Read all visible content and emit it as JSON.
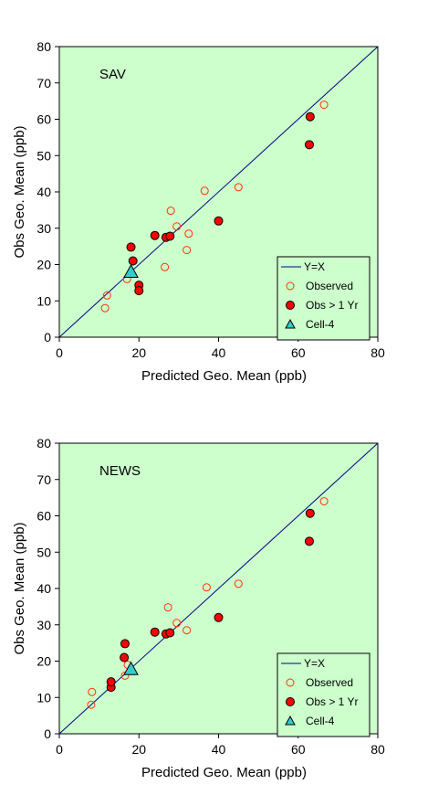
{
  "colors": {
    "plot_bg": "#ccffcc",
    "line": "#000080",
    "marker_edge_observed": "#ff3300",
    "marker_fill_obs": "#ff0000",
    "marker_fill_cell": "#33cccc",
    "axis": "#000000"
  },
  "chart_data": [
    {
      "type": "scatter",
      "title": "SAV",
      "xlabel": "Predicted Geo. Mean  (ppb)",
      "ylabel": "Obs Geo. Mean  (ppb)",
      "xlim": [
        0,
        80
      ],
      "ylim": [
        0,
        80
      ],
      "xticks": [
        "0",
        "20",
        "40",
        "60",
        "80"
      ],
      "yticks": [
        "0",
        "10",
        "20",
        "30",
        "40",
        "50",
        "60",
        "70",
        "80"
      ],
      "grid": false,
      "legend_position": "bottom-right",
      "series": [
        {
          "name": "Y=X",
          "kind": "line",
          "x": [
            0,
            80
          ],
          "y": [
            0,
            80
          ]
        },
        {
          "name": "Observed",
          "kind": "open-circle",
          "x": [
            11.5,
            12,
            17,
            26.5,
            28,
            29.5,
            32,
            32.5,
            36.5,
            45,
            66.5
          ],
          "y": [
            8,
            11.5,
            16,
            19.3,
            34.8,
            30.5,
            24,
            28.5,
            40.3,
            41.3,
            64
          ]
        },
        {
          "name": "Obs > 1 Yr",
          "kind": "filled-circle",
          "x": [
            18,
            18.5,
            20,
            20,
            24,
            26.8,
            27.8,
            40,
            62.8,
            63
          ],
          "y": [
            24.8,
            21,
            14.3,
            12.8,
            28,
            27.5,
            27.8,
            32,
            53,
            60.7
          ]
        },
        {
          "name": "Cell-4",
          "kind": "triangle",
          "x": [
            18
          ],
          "y": [
            18
          ]
        }
      ]
    },
    {
      "type": "scatter",
      "title": "NEWS",
      "xlabel": "Predicted Geo. Mean  (ppb)",
      "ylabel": "Obs Geo. Mean  (ppb)",
      "xlim": [
        0,
        80
      ],
      "ylim": [
        0,
        80
      ],
      "xticks": [
        "0",
        "20",
        "40",
        "60",
        "80"
      ],
      "yticks": [
        "0",
        "10",
        "20",
        "30",
        "40",
        "50",
        "60",
        "70",
        "80"
      ],
      "grid": false,
      "legend_position": "bottom-right",
      "series": [
        {
          "name": "Y=X",
          "kind": "line",
          "x": [
            0,
            80
          ],
          "y": [
            0,
            80
          ]
        },
        {
          "name": "Observed",
          "kind": "open-circle",
          "x": [
            8,
            8.2,
            16.5,
            17.2,
            27.3,
            29.5,
            32,
            37,
            45,
            66.5
          ],
          "y": [
            8,
            11.5,
            16,
            19,
            34.8,
            30.5,
            28.5,
            40.3,
            41.3,
            64
          ]
        },
        {
          "name": "Obs > 1 Yr",
          "kind": "filled-circle",
          "x": [
            13,
            13,
            16.3,
            16.5,
            24,
            26.8,
            27.8,
            40,
            62.8,
            63
          ],
          "y": [
            12.8,
            14.3,
            21,
            24.8,
            28,
            27.5,
            27.8,
            32,
            53,
            60.7
          ]
        },
        {
          "name": "Cell-4",
          "kind": "triangle",
          "x": [
            18
          ],
          "y": [
            17.8
          ]
        }
      ]
    }
  ]
}
